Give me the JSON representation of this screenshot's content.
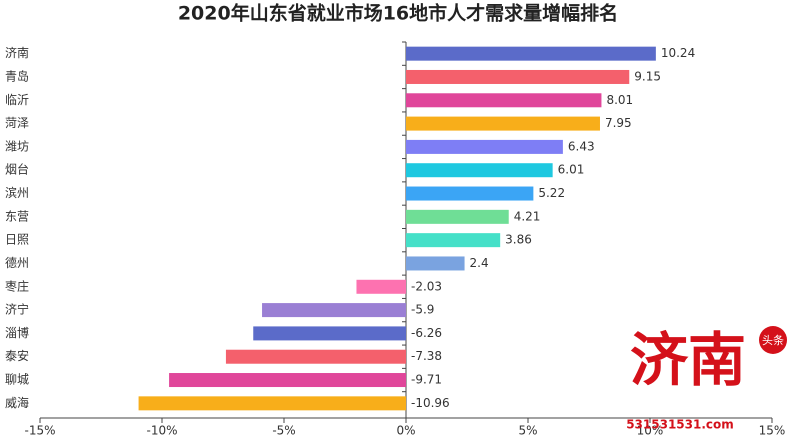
{
  "chart_data": {
    "type": "barh",
    "title": "2020年山东省就业市场16地市人才需求量增幅排名",
    "categories": [
      "济南",
      "青岛",
      "临沂",
      "菏泽",
      "潍坊",
      "烟台",
      "滨州",
      "东营",
      "日照",
      "德州",
      "枣庄",
      "济宁",
      "淄博",
      "泰安",
      "聊城",
      "威海"
    ],
    "values": [
      10.24,
      9.15,
      8.01,
      7.95,
      6.43,
      6.01,
      5.22,
      4.21,
      3.86,
      2.4,
      -2.03,
      -5.9,
      -6.26,
      -7.38,
      -9.71,
      -10.96
    ],
    "colors": [
      "#5b6bc9",
      "#f4606c",
      "#e0469a",
      "#f8ae1a",
      "#7e7ef5",
      "#1ec8e0",
      "#3ba5f5",
      "#6fde96",
      "#45e0c8",
      "#7aa3e0",
      "#fd72b0",
      "#9a7fd4",
      "#5b6bc9",
      "#f4606c",
      "#e0469a",
      "#f8ae1a"
    ],
    "xlim": [
      -15,
      15
    ],
    "xticks": [
      {
        "value": -15,
        "label": "-15%"
      },
      {
        "value": -10,
        "label": "-10%"
      },
      {
        "value": -5,
        "label": "-5%"
      },
      {
        "value": 0,
        "label": "0%"
      },
      {
        "value": 5,
        "label": "5%"
      },
      {
        "value": 10,
        "label": "10%"
      },
      {
        "value": 15,
        "label": "15%"
      }
    ],
    "annotations": [
      "济南",
      "头条",
      "531531531.com"
    ]
  }
}
